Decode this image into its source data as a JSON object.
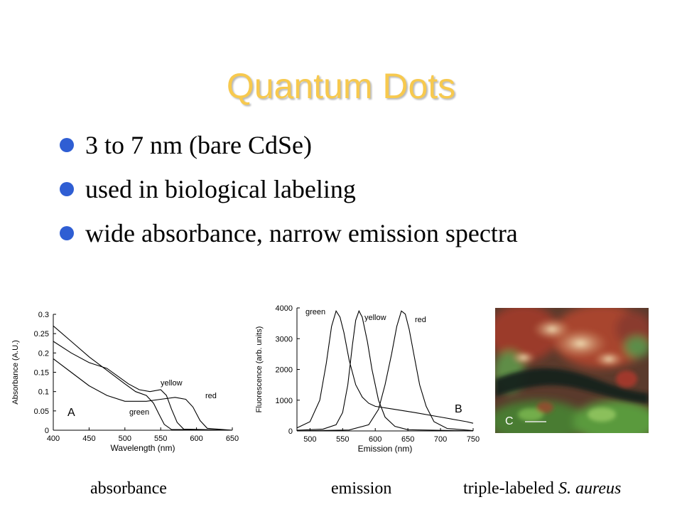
{
  "slide": {
    "title": "Quantum Dots",
    "bullets": [
      "3 to 7 nm (bare CdSe)",
      "used in biological labeling",
      "wide absorbance, narrow emission spectra"
    ]
  },
  "captions": {
    "absorbance": "absorbance",
    "emission": "emission",
    "micrograph_prefix": "triple-labeled ",
    "micrograph_species": "S. aureus"
  },
  "micrograph": {
    "panel_label": "C"
  },
  "chart_data": [
    {
      "type": "line",
      "panel_label": "A",
      "xlabel": "Wavelength (nm)",
      "ylabel": "Absorbance (A.U.)",
      "xlim": [
        400,
        650
      ],
      "ylim": [
        0,
        0.3
      ],
      "xticks": [
        "400",
        "450",
        "500",
        "550",
        "600",
        "650"
      ],
      "yticks": [
        "0",
        "0.05",
        "0.1",
        "0.15",
        "0.2",
        "0.25",
        "0.3"
      ],
      "annotations": [
        "yellow",
        "red",
        "green"
      ],
      "series": [
        {
          "name": "green",
          "points": [
            [
              400,
              0.27
            ],
            [
              425,
              0.23
            ],
            [
              450,
              0.19
            ],
            [
              475,
              0.155
            ],
            [
              500,
              0.12
            ],
            [
              515,
              0.1
            ],
            [
              530,
              0.09
            ],
            [
              540,
              0.07
            ],
            [
              548,
              0.04
            ],
            [
              555,
              0.015
            ],
            [
              565,
              0.002
            ],
            [
              650,
              0
            ]
          ]
        },
        {
          "name": "yellow",
          "points": [
            [
              400,
              0.23
            ],
            [
              425,
              0.2
            ],
            [
              450,
              0.175
            ],
            [
              475,
              0.16
            ],
            [
              490,
              0.14
            ],
            [
              505,
              0.12
            ],
            [
              520,
              0.105
            ],
            [
              535,
              0.1
            ],
            [
              550,
              0.105
            ],
            [
              558,
              0.09
            ],
            [
              565,
              0.055
            ],
            [
              573,
              0.02
            ],
            [
              582,
              0.003
            ],
            [
              650,
              0
            ]
          ]
        },
        {
          "name": "red",
          "points": [
            [
              400,
              0.185
            ],
            [
              425,
              0.15
            ],
            [
              450,
              0.115
            ],
            [
              475,
              0.09
            ],
            [
              500,
              0.075
            ],
            [
              530,
              0.075
            ],
            [
              550,
              0.08
            ],
            [
              570,
              0.085
            ],
            [
              585,
              0.08
            ],
            [
              595,
              0.06
            ],
            [
              605,
              0.025
            ],
            [
              615,
              0.005
            ],
            [
              650,
              0
            ]
          ]
        }
      ]
    },
    {
      "type": "line",
      "panel_label": "B",
      "xlabel": "Emission (nm)",
      "ylabel": "Fluorescence (arb. units)",
      "xlim": [
        480,
        750
      ],
      "ylim": [
        0,
        4000
      ],
      "xticks": [
        "500",
        "550",
        "600",
        "650",
        "700",
        "750"
      ],
      "yticks": [
        "0",
        "1000",
        "2000",
        "3000",
        "4000"
      ],
      "annotations": [
        "green",
        "yellow",
        "red"
      ],
      "series": [
        {
          "name": "green",
          "points": [
            [
              480,
              100
            ],
            [
              500,
              300
            ],
            [
              515,
              1000
            ],
            [
              525,
              2200
            ],
            [
              533,
              3400
            ],
            [
              540,
              3900
            ],
            [
              546,
              3700
            ],
            [
              552,
              3200
            ],
            [
              560,
              2300
            ],
            [
              570,
              1500
            ],
            [
              580,
              1100
            ],
            [
              590,
              900
            ],
            [
              600,
              800
            ],
            [
              630,
              700
            ],
            [
              660,
              600
            ],
            [
              700,
              450
            ],
            [
              740,
              300
            ],
            [
              750,
              250
            ]
          ]
        },
        {
          "name": "yellow",
          "points": [
            [
              480,
              20
            ],
            [
              520,
              60
            ],
            [
              540,
              200
            ],
            [
              550,
              600
            ],
            [
              558,
              1500
            ],
            [
              565,
              2800
            ],
            [
              570,
              3600
            ],
            [
              575,
              3900
            ],
            [
              580,
              3700
            ],
            [
              588,
              2900
            ],
            [
              595,
              2000
            ],
            [
              605,
              1000
            ],
            [
              615,
              450
            ],
            [
              630,
              150
            ],
            [
              650,
              40
            ],
            [
              750,
              0
            ]
          ]
        },
        {
          "name": "red",
          "points": [
            [
              480,
              0
            ],
            [
              560,
              30
            ],
            [
              590,
              200
            ],
            [
              605,
              700
            ],
            [
              615,
              1500
            ],
            [
              625,
              2500
            ],
            [
              633,
              3400
            ],
            [
              640,
              3900
            ],
            [
              646,
              3800
            ],
            [
              652,
              3300
            ],
            [
              660,
              2400
            ],
            [
              668,
              1500
            ],
            [
              678,
              800
            ],
            [
              690,
              300
            ],
            [
              710,
              80
            ],
            [
              750,
              10
            ]
          ]
        }
      ]
    }
  ]
}
